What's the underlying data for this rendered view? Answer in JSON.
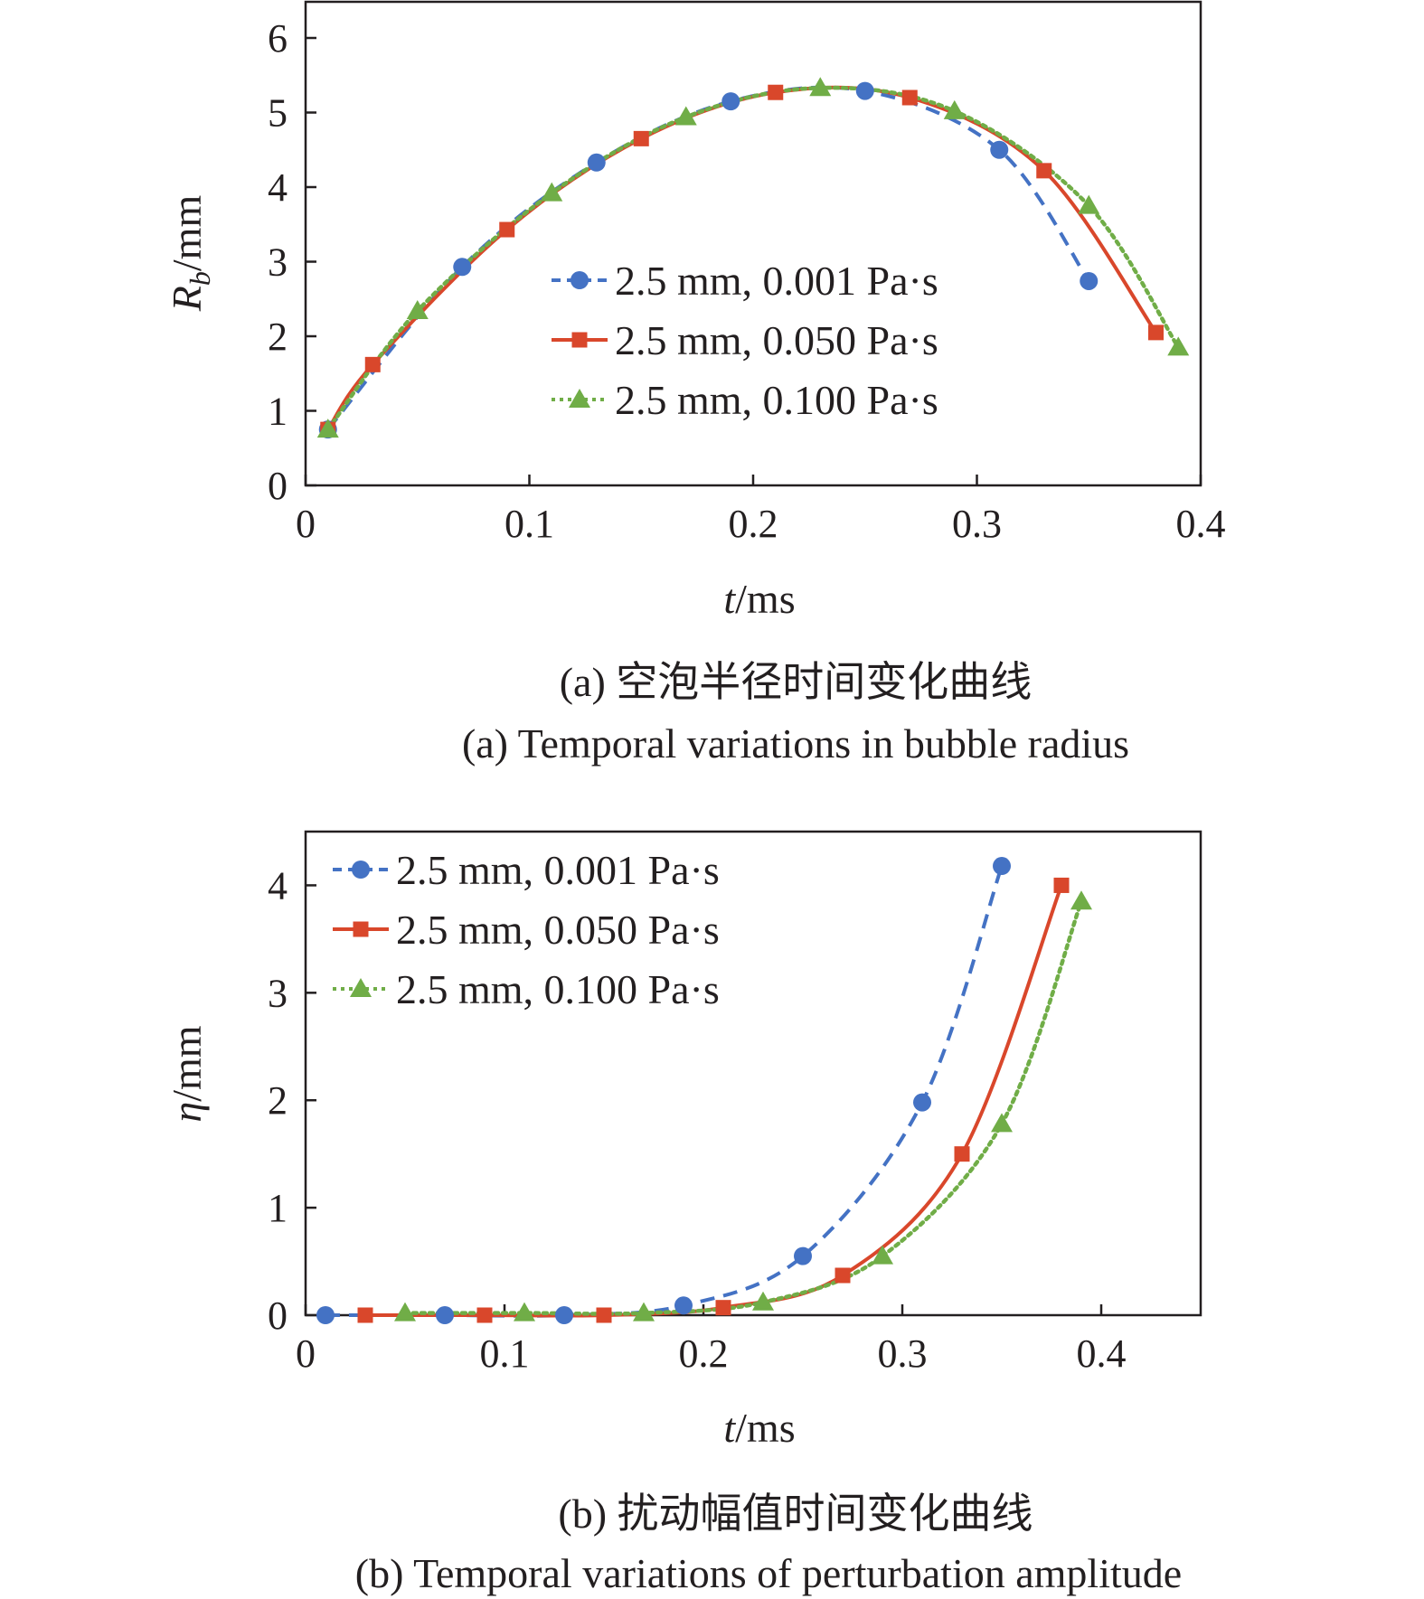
{
  "chart_data": [
    {
      "type": "line",
      "panel": "a",
      "xlabel_var": "t",
      "xlabel_unit": "/ms",
      "ylabel_var": "R",
      "ylabel_sub": "b",
      "ylabel_unit": "/mm",
      "xlim": [
        0,
        0.4
      ],
      "ylim": [
        0,
        6
      ],
      "xticks": [
        0,
        0.1,
        0.2,
        0.3,
        0.4
      ],
      "xtick_labels": [
        "0",
        "0.1",
        "0.2",
        "0.3",
        "0.4"
      ],
      "yticks": [
        0,
        1,
        2,
        3,
        4,
        5,
        6
      ],
      "ytick_labels": [
        "0",
        "1",
        "2",
        "3",
        "4",
        "5",
        "6"
      ],
      "grid": false,
      "legend_position": "center-right",
      "caption_cn": "(a) 空泡半径时间变化曲线",
      "caption_en": "(a) Temporal variations in bubble radius",
      "series": [
        {
          "name": "2.5 mm, 0.001 Pa·s",
          "color": "#4472c4",
          "dash": "dashed",
          "marker": "circle",
          "x": [
            0.01,
            0.07,
            0.13,
            0.19,
            0.25,
            0.31,
            0.35
          ],
          "y": [
            0.75,
            2.93,
            4.33,
            5.15,
            5.29,
            4.5,
            2.74
          ]
        },
        {
          "name": "2.5 mm, 0.050 Pa·s",
          "color": "#d9472b",
          "dash": "solid",
          "marker": "square",
          "x": [
            0.01,
            0.03,
            0.09,
            0.15,
            0.21,
            0.27,
            0.33,
            0.38
          ],
          "y": [
            0.75,
            1.62,
            3.43,
            4.65,
            5.27,
            5.2,
            4.22,
            2.05
          ]
        },
        {
          "name": "2.5 mm, 0.100 Pa·s",
          "color": "#70ad47",
          "dash": "dotted",
          "marker": "triangle",
          "x": [
            0.01,
            0.05,
            0.11,
            0.17,
            0.23,
            0.29,
            0.35,
            0.39
          ],
          "y": [
            0.75,
            2.34,
            3.92,
            4.94,
            5.33,
            5.02,
            3.75,
            1.85
          ]
        }
      ]
    },
    {
      "type": "line",
      "panel": "b",
      "xlabel_var": "t",
      "xlabel_unit": "/ms",
      "ylabel_var": "η",
      "ylabel_unit": "/mm",
      "xlim": [
        0,
        0.45
      ],
      "ylim": [
        0,
        4.5
      ],
      "xticks": [
        0,
        0.1,
        0.2,
        0.3,
        0.4
      ],
      "xtick_labels": [
        "0",
        "0.1",
        "0.2",
        "0.3",
        "0.4"
      ],
      "yticks": [
        0,
        1,
        2,
        3,
        4
      ],
      "ytick_labels": [
        "0",
        "1",
        "2",
        "3",
        "4"
      ],
      "grid": false,
      "legend_position": "top-left",
      "caption_cn": "(b) 扰动幅值时间变化曲线",
      "caption_en": "(b) Temporal variations of perturbation amplitude",
      "series": [
        {
          "name": "2.5 mm, 0.001 Pa·s",
          "color": "#4472c4",
          "dash": "dashed",
          "marker": "circle",
          "x": [
            0.01,
            0.07,
            0.13,
            0.19,
            0.25,
            0.31,
            0.35
          ],
          "y": [
            0.0,
            0.0,
            0.0,
            0.09,
            0.55,
            1.98,
            4.18
          ]
        },
        {
          "name": "2.5 mm, 0.050 Pa·s",
          "color": "#d9472b",
          "dash": "solid",
          "marker": "square",
          "x": [
            0.03,
            0.09,
            0.15,
            0.21,
            0.27,
            0.33,
            0.38
          ],
          "y": [
            0.0,
            0.0,
            0.0,
            0.07,
            0.37,
            1.5,
            4.0
          ]
        },
        {
          "name": "2.5 mm, 0.100 Pa·s",
          "color": "#70ad47",
          "dash": "dotted",
          "marker": "triangle",
          "x": [
            0.05,
            0.11,
            0.17,
            0.23,
            0.29,
            0.35,
            0.39
          ],
          "y": [
            0.02,
            0.02,
            0.02,
            0.12,
            0.55,
            1.78,
            3.85
          ]
        }
      ]
    }
  ]
}
